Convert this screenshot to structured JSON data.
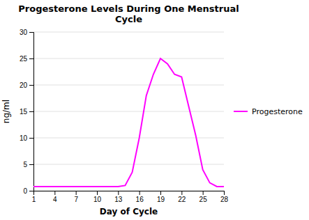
{
  "chart_data": {
    "type": "line",
    "title": "Progesterone Levels During One Menstrual\nCycle",
    "x_label": "Day of Cycle",
    "y_label": "ng/ml",
    "x": [
      1,
      2,
      3,
      4,
      5,
      6,
      7,
      8,
      9,
      10,
      11,
      12,
      13,
      14,
      15,
      16,
      17,
      18,
      19,
      20,
      21,
      22,
      23,
      24,
      25,
      26,
      27,
      28
    ],
    "series": [
      {
        "name": "Progesterone",
        "color": "#FF00FF",
        "values": [
          0.8,
          0.8,
          0.8,
          0.8,
          0.8,
          0.8,
          0.8,
          0.8,
          0.8,
          0.8,
          0.8,
          0.8,
          0.8,
          1.0,
          3.5,
          10.0,
          18.0,
          22.0,
          25.0,
          24.0,
          22.0,
          21.5,
          16.0,
          10.5,
          4.0,
          1.5,
          0.8,
          0.8
        ]
      }
    ],
    "xlim": [
      1,
      28
    ],
    "ylim": [
      0,
      30
    ],
    "xticks": [
      1,
      4,
      7,
      10,
      13,
      16,
      19,
      22,
      25,
      28
    ],
    "yticks": [
      0,
      5,
      10,
      15,
      20,
      25,
      30
    ],
    "grid": "y",
    "legend": "right"
  }
}
